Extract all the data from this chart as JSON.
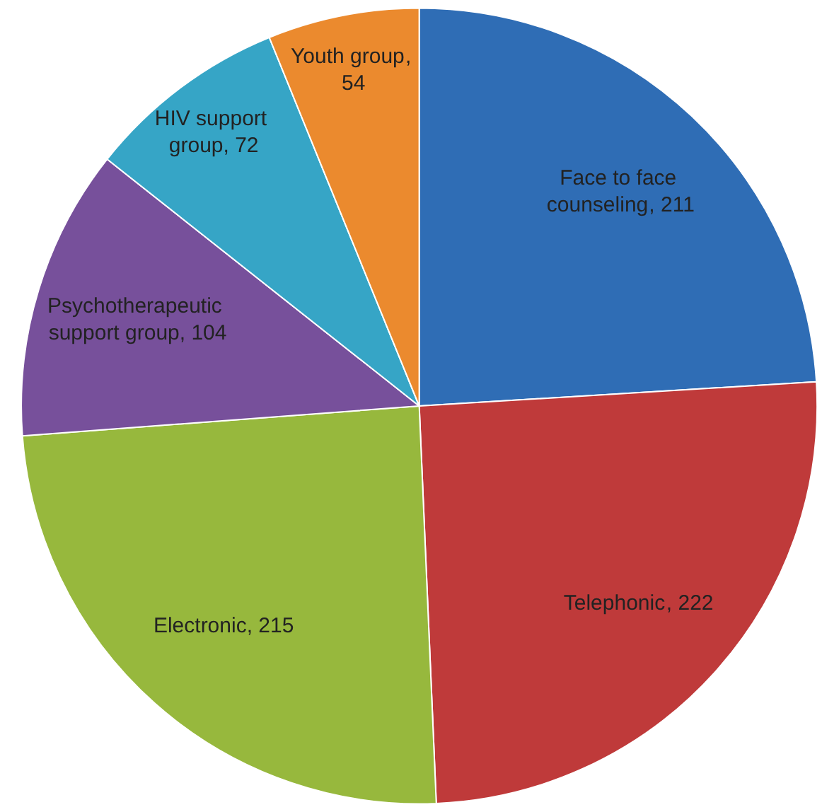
{
  "chart_data": {
    "type": "pie",
    "categories": [
      "Face to face counseling",
      "Telephonic",
      "Electronic",
      "Psychotherapeutic support group",
      "HIV support group",
      "Youth group"
    ],
    "values": [
      211,
      222,
      215,
      104,
      72,
      54
    ],
    "colors": [
      "#2f6db5",
      "#bf3a3a",
      "#97b83d",
      "#77509b",
      "#36a5c6",
      "#eb8a2e"
    ],
    "value_labels": [
      ", 211",
      ", 222",
      ", 215",
      ", 104",
      ", 72",
      ", 54"
    ]
  }
}
